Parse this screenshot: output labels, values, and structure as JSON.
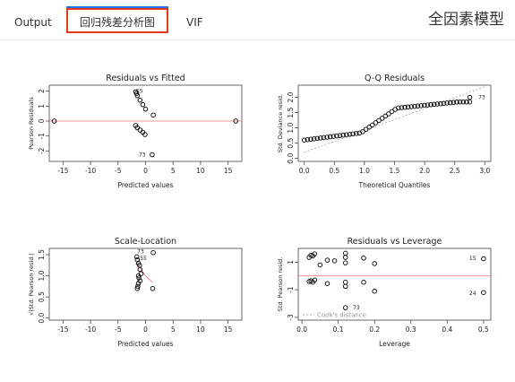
{
  "tabs": {
    "output": "Output",
    "residuals": "回归残差分析图",
    "vif": "VIF"
  },
  "model_title": "全因素模型",
  "colors": {
    "accent": "#e5391f",
    "active_bar": "#1a73e8",
    "fit_line": "#e07080",
    "point": "#000000"
  },
  "chart_data": [
    {
      "type": "scatter",
      "title": "Residuals vs Fitted",
      "xlabel": "Predicted values",
      "ylabel": "Pearson Residuals",
      "xlim": [
        -17.5,
        17.5
      ],
      "ylim": [
        -2.7,
        2.4
      ],
      "xticks": [
        "-15",
        "-10",
        "-5",
        "0",
        "5",
        "10",
        "15"
      ],
      "yticks": [
        "-2",
        "-1",
        "0",
        "1",
        "2"
      ],
      "ref_line": 0,
      "points": [
        [
          -16.6,
          0.0
        ],
        [
          16.4,
          0.0
        ],
        [
          -1.8,
          1.95
        ],
        [
          -1.6,
          1.85
        ],
        [
          -1.5,
          1.7
        ],
        [
          -1.0,
          1.4
        ],
        [
          -0.5,
          1.1
        ],
        [
          0,
          0.8
        ],
        [
          1.4,
          0.4
        ],
        [
          -1.8,
          -0.3
        ],
        [
          -1.5,
          -0.45
        ],
        [
          -1.0,
          -0.6
        ],
        [
          -0.5,
          -0.75
        ],
        [
          -0.1,
          -0.9
        ],
        [
          1.2,
          -2.25
        ]
      ],
      "annotations": [
        {
          "label": "55",
          "x": -1.1,
          "y": 2.0
        },
        {
          "label": "73",
          "x": -0.6,
          "y": -2.25
        }
      ]
    },
    {
      "type": "scatter",
      "title": "Q-Q Residuals",
      "xlabel": "Theoretical Quantiles",
      "ylabel": "Std. Deviance resid.",
      "xlim": [
        -0.1,
        3.1
      ],
      "ylim": [
        -0.1,
        2.4
      ],
      "xticks": [
        "0.0",
        "0.5",
        "1.0",
        "1.5",
        "2.0",
        "2.5",
        "3.0"
      ],
      "yticks": [
        "0.0",
        "0.5",
        "1.0",
        "1.5",
        "2.0"
      ],
      "annotations": [
        {
          "label": "73",
          "x": 2.95,
          "y": 2.0
        }
      ]
    },
    {
      "type": "scatter",
      "title": "Scale-Location",
      "xlabel": "Predicted values",
      "ylabel": "√|Std. Pearson resid.|",
      "xlim": [
        -17.5,
        17.5
      ],
      "ylim": [
        -0.05,
        1.65
      ],
      "xticks": [
        "-15",
        "-10",
        "-5",
        "0",
        "5",
        "10",
        "15"
      ],
      "yticks": [
        "0.0",
        "0.5",
        "1.0",
        "1.5"
      ],
      "points": [
        [
          -1.6,
          1.45
        ],
        [
          -1.5,
          1.38
        ],
        [
          -1.3,
          1.3
        ],
        [
          -1.1,
          1.25
        ],
        [
          -1.0,
          1.15
        ],
        [
          -0.8,
          1.05
        ],
        [
          -1.3,
          1.0
        ],
        [
          -1.2,
          0.95
        ],
        [
          -1.0,
          0.88
        ],
        [
          -1.3,
          0.82
        ],
        [
          -1.4,
          0.75
        ],
        [
          -1.5,
          0.7
        ],
        [
          1.3,
          0.7
        ],
        [
          1.4,
          1.55
        ]
      ],
      "annotations": [
        {
          "label": "73",
          "x": -0.9,
          "y": 1.58
        },
        {
          "label": "55",
          "x": -0.4,
          "y": 1.42
        }
      ]
    },
    {
      "type": "scatter",
      "title": "Residuals vs Leverage",
      "xlabel": "Leverage",
      "ylabel": "Std. Pearson resid.",
      "xlim": [
        -0.01,
        0.52
      ],
      "ylim": [
        -3.2,
        2.0
      ],
      "xticks": [
        "0.0",
        "0.1",
        "0.2",
        "0.3",
        "0.4",
        "0.5"
      ],
      "yticks": [
        "-3",
        "-1",
        "1"
      ],
      "ref_line": 0,
      "legend_label": "Cook's distance",
      "points": [
        [
          0.02,
          1.35
        ],
        [
          0.025,
          1.5
        ],
        [
          0.03,
          1.45
        ],
        [
          0.035,
          1.6
        ],
        [
          0.05,
          0.8
        ],
        [
          0.07,
          1.15
        ],
        [
          0.09,
          1.1
        ],
        [
          0.12,
          0.95
        ],
        [
          0.12,
          1.35
        ],
        [
          0.12,
          1.65
        ],
        [
          0.17,
          1.3
        ],
        [
          0.2,
          0.9
        ],
        [
          0.02,
          -0.4
        ],
        [
          0.025,
          -0.35
        ],
        [
          0.03,
          -0.45
        ],
        [
          0.035,
          -0.3
        ],
        [
          0.07,
          -0.55
        ],
        [
          0.12,
          -0.45
        ],
        [
          0.12,
          -0.75
        ],
        [
          0.17,
          -0.45
        ],
        [
          0.2,
          -1.1
        ],
        [
          0.12,
          -2.3
        ],
        [
          0.5,
          1.25
        ],
        [
          0.5,
          -1.2
        ]
      ],
      "annotations": [
        {
          "label": "73",
          "x": 0.15,
          "y": -2.3
        },
        {
          "label": "15",
          "x": 0.47,
          "y": 1.3
        },
        {
          "label": "24",
          "x": 0.47,
          "y": -1.25
        }
      ]
    }
  ]
}
